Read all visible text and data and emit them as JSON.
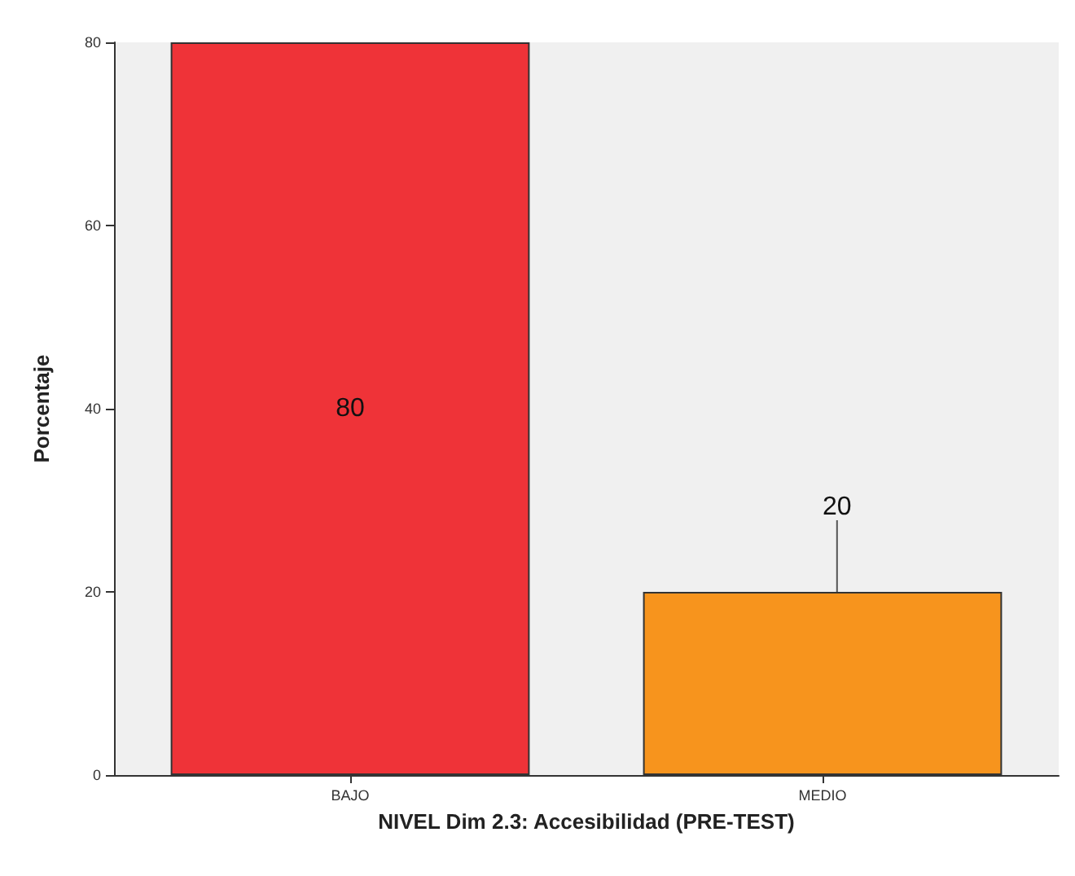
{
  "chart_data": {
    "type": "bar",
    "xlabel": "NIVEL Dim 2.3: Accesibilidad (PRE-TEST)",
    "ylabel": "Porcentaje",
    "categories": [
      "BAJO",
      "MEDIO"
    ],
    "values": [
      80,
      20
    ],
    "colors": [
      "#ef3338",
      "#f7941d"
    ],
    "ylim": [
      0,
      80
    ],
    "yticks": [
      0,
      20,
      40,
      60,
      80
    ],
    "data_labels": true
  }
}
